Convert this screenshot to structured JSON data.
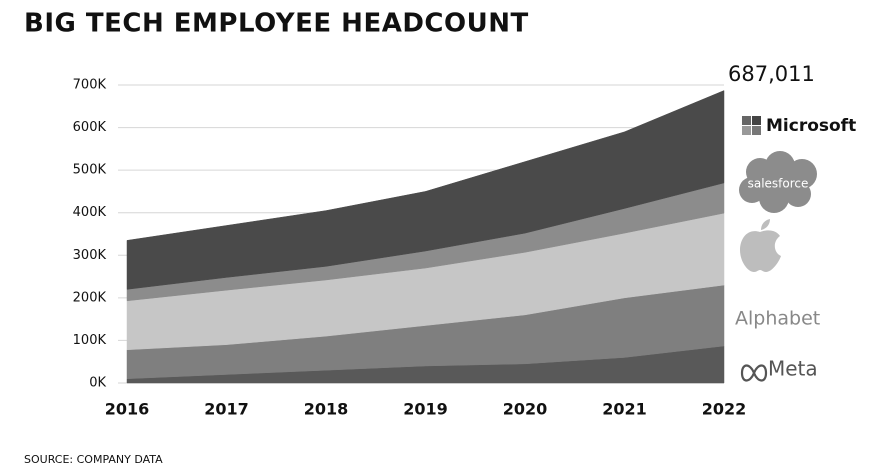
{
  "chart_data": {
    "type": "stacked-area",
    "title": "BIG TECH EMPLOYEE HEADCOUNT",
    "source": "SOURCE: COMPANY DATA",
    "annotation": "687,011",
    "categories": [
      "2016",
      "2017",
      "2018",
      "2019",
      "2020",
      "2021",
      "2022"
    ],
    "series": [
      {
        "name": "Meta",
        "color": "#595959",
        "values": [
          10,
          20,
          30,
          40,
          45,
          60,
          87
        ]
      },
      {
        "name": "Alphabet",
        "color": "#7f7f7f",
        "values": [
          68,
          70,
          80,
          95,
          115,
          140,
          143
        ]
      },
      {
        "color": "#c6c6c6",
        "values": [
          115,
          128,
          132,
          135,
          147,
          152,
          169
        ]
      },
      {
        "name": "salesforce",
        "color": "#8c8c8c",
        "values": [
          27,
          30,
          32,
          40,
          45,
          58,
          71
        ]
      },
      {
        "name": "Microsoft",
        "color": "#4a4a4a",
        "values": [
          115,
          122,
          131,
          140,
          168,
          180,
          217
        ]
      }
    ],
    "ylim": [
      0,
      700
    ],
    "yticks": [
      {
        "value": 0,
        "label": "0K"
      },
      {
        "value": 100,
        "label": "100K"
      },
      {
        "value": 200,
        "label": "200K"
      },
      {
        "value": 300,
        "label": "300K"
      },
      {
        "value": 400,
        "label": "400K"
      },
      {
        "value": 500,
        "label": "500K"
      },
      {
        "value": 600,
        "label": "600K"
      },
      {
        "value": 700,
        "label": "700K"
      }
    ],
    "grid": true
  }
}
